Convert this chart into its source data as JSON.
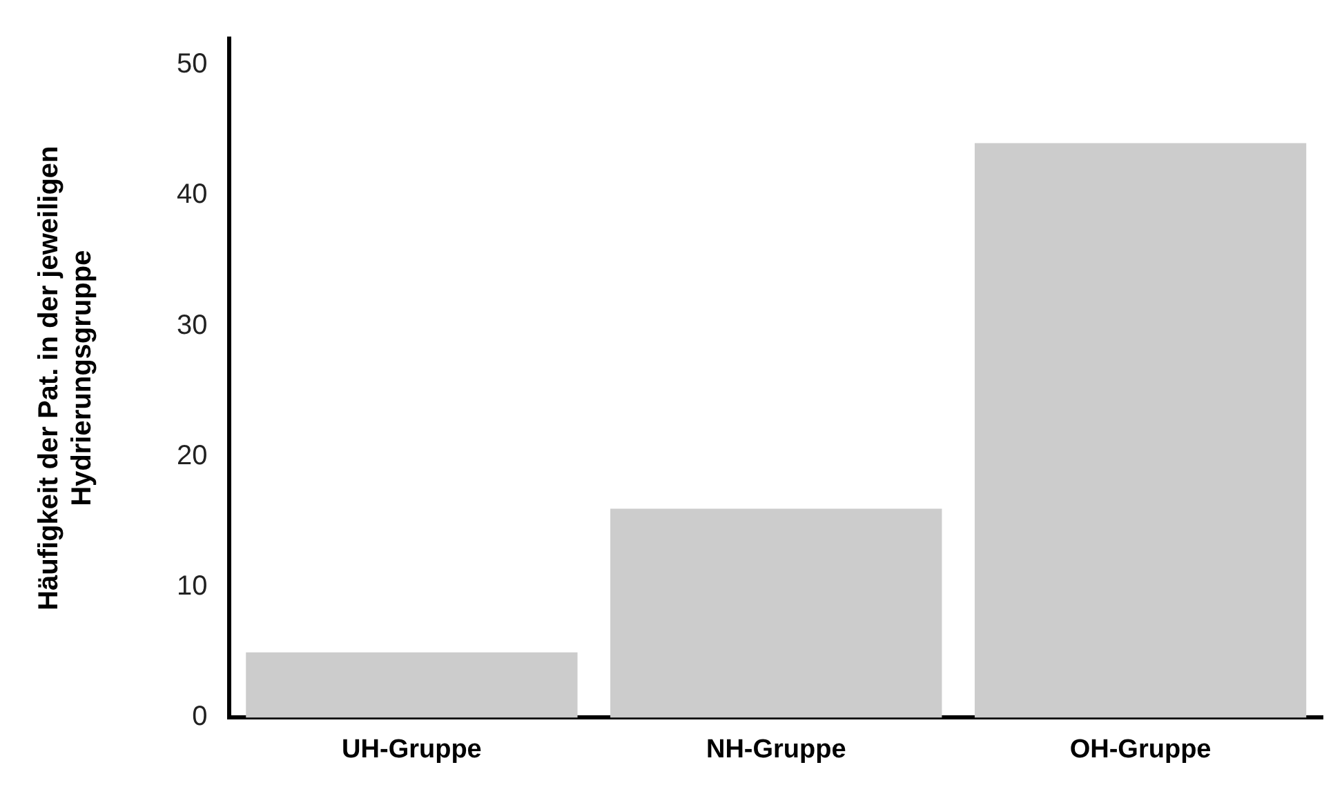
{
  "chart_data": {
    "type": "bar",
    "ylabel": "Häufigkeit der Pat. in der jeweiligen\nHydrierungsgruppe",
    "categories": [
      "UH-Gruppe",
      "NH-Gruppe",
      "OH-Gruppe"
    ],
    "values": [
      5,
      16,
      44
    ],
    "color": "#cccccc",
    "ylim": [
      0,
      52
    ],
    "yticks": [
      0,
      10,
      20,
      30,
      40,
      50
    ],
    "grid": false,
    "legend": false
  }
}
